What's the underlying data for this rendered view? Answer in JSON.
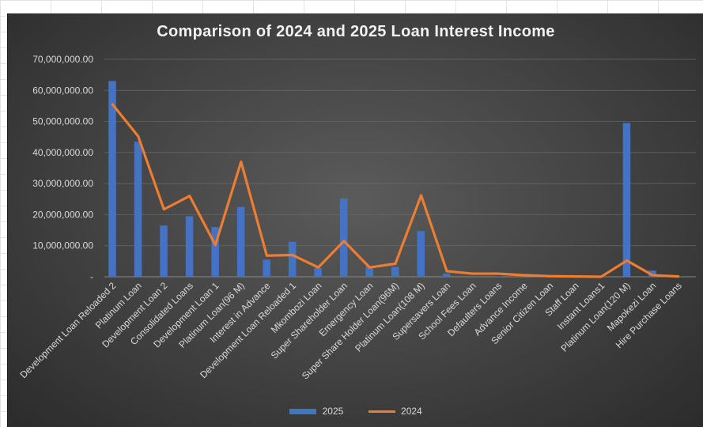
{
  "chart_data": {
    "type": "bar",
    "title": "Comparison of 2024 and 2025 Loan Interest Income",
    "categories": [
      "Development Loan Reloaded 2",
      "Platinum Loan",
      "Development Loan 2",
      "Consolidated Loans",
      "Development Loan 1",
      "Platinum Loan(96 M)",
      "Interest in Advance",
      "Development Loan Reloaded 1",
      "Mkombozi Loan",
      "Super Shareholder Loan",
      "Emergency Loan",
      "Super Share Holder Loan(96M)",
      "Platinum Loan(108 M)",
      "Supersavers Loan",
      "School Fees Loan",
      "Defaulters Loans",
      "Advance Income",
      "Senior Citizen Loan",
      "Staff Loan",
      "Instant Loans1",
      "Platinum Loan(120 M)",
      "Mapokezi Loan",
      "Hire Purchase Loans"
    ],
    "series": [
      {
        "name": "2025",
        "kind": "bar",
        "color": "#4472c4",
        "values": [
          63000000,
          43500000,
          16500000,
          19500000,
          16000000,
          22500000,
          5500000,
          11300000,
          2800000,
          25200000,
          3300000,
          3200000,
          14700000,
          1000000,
          200000,
          150000,
          100000,
          80000,
          50000,
          30000,
          49500000,
          2000000,
          80000
        ]
      },
      {
        "name": "2024",
        "kind": "line",
        "color": "#ed7d31",
        "values": [
          55500000,
          45200000,
          21700000,
          26000000,
          10200000,
          37000000,
          6800000,
          7000000,
          3000000,
          11500000,
          3000000,
          4200000,
          26200000,
          1800000,
          1000000,
          1000000,
          500000,
          200000,
          100000,
          0,
          5200000,
          500000,
          100000
        ]
      }
    ],
    "y_tick_labels": [
      "-",
      "10,000,000.00",
      "20,000,000.00",
      "30,000,000.00",
      "40,000,000.00",
      "50,000,000.00",
      "60,000,000.00",
      "70,000,000.00"
    ],
    "ylim": [
      0,
      70000000
    ],
    "grid": true,
    "legend": "bottom"
  }
}
